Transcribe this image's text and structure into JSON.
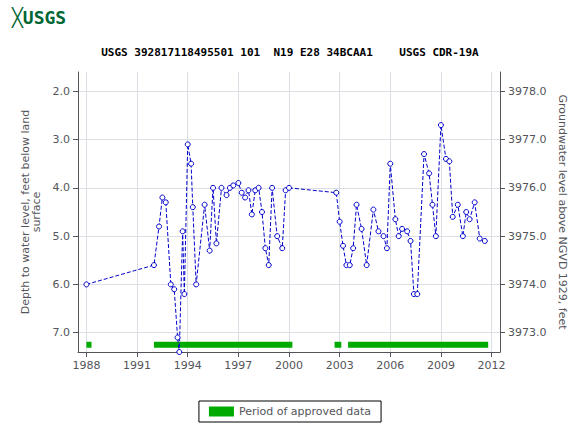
{
  "chart_data": {
    "type": "line",
    "title": "USGS 392817118495501 101  N19 E28 34BCAA1    USGS CDR-19A",
    "annotations": [
      {
        "text": "╳USGS",
        "color": "#006633"
      }
    ],
    "ylabel": "Depth to water level, feet below land\nsurface",
    "y2label": "Groundwater level above NGVD 1929, feet",
    "xlim": [
      1987.5,
      2012.5
    ],
    "xticks": [
      1988,
      1991,
      1994,
      1997,
      2000,
      2003,
      2006,
      2009,
      2012
    ],
    "ylim": [
      7.4,
      1.6
    ],
    "yticks": [
      {
        "value": 2.0,
        "label": "2.0"
      },
      {
        "value": 3.0,
        "label": "3.0"
      },
      {
        "value": 4.0,
        "label": "4.0"
      },
      {
        "value": 5.0,
        "label": "5.0"
      },
      {
        "value": 6.0,
        "label": "6.0"
      },
      {
        "value": 7.0,
        "label": "7.0"
      }
    ],
    "y2lim": [
      3972.6,
      3978.4
    ],
    "y2ticks": [
      {
        "value": 3973.0,
        "label": "3973.0"
      },
      {
        "value": 3974.0,
        "label": "3974.0"
      },
      {
        "value": 3975.0,
        "label": "3975.0"
      },
      {
        "value": 3976.0,
        "label": "3976.0"
      },
      {
        "value": 3977.0,
        "label": "3977.0"
      },
      {
        "value": 3978.0,
        "label": "3978.0"
      }
    ],
    "grid": true,
    "legend": "bottom",
    "series": [
      {
        "type": "line",
        "color": "#0000CC",
        "line_style": "dashed",
        "marker": "circle",
        "x": [
          1988.0,
          1992.0,
          1992.3,
          1992.5,
          1992.7,
          1993.0,
          1993.2,
          1993.4,
          1993.5,
          1993.7,
          1993.8,
          1994.0,
          1994.2,
          1994.3,
          1994.5,
          1995.0,
          1995.3,
          1995.5,
          1995.7,
          1996.0,
          1996.3,
          1996.5,
          1996.7,
          1997.0,
          1997.2,
          1997.4,
          1997.6,
          1997.8,
          1998.0,
          1998.2,
          1998.4,
          1998.6,
          1998.8,
          1999.0,
          1999.3,
          1999.6,
          1999.8,
          2000.0,
          2002.8,
          2003.0,
          2003.2,
          2003.4,
          2003.6,
          2003.8,
          2004.0,
          2004.3,
          2004.6,
          2005.0,
          2005.3,
          2005.6,
          2005.8,
          2006.0,
          2006.3,
          2006.5,
          2006.7,
          2007.0,
          2007.2,
          2007.4,
          2007.6,
          2008.0,
          2008.3,
          2008.5,
          2008.7,
          2009.0,
          2009.3,
          2009.5,
          2009.7,
          2010.0,
          2010.3,
          2010.5,
          2010.7,
          2011.0,
          2011.3,
          2011.6
        ],
        "values": [
          6.0,
          5.6,
          4.8,
          4.2,
          4.3,
          6.0,
          6.1,
          7.1,
          7.4,
          4.9,
          6.2,
          3.1,
          3.5,
          4.4,
          6.0,
          4.35,
          5.3,
          4.0,
          5.15,
          4.0,
          4.15,
          4.0,
          3.95,
          3.9,
          4.1,
          4.2,
          4.05,
          4.55,
          4.05,
          4.0,
          4.5,
          5.25,
          5.6,
          4.0,
          5.0,
          5.25,
          4.05,
          4.0,
          4.1,
          4.7,
          5.2,
          5.6,
          5.6,
          5.25,
          4.35,
          4.85,
          5.6,
          4.45,
          4.9,
          5.0,
          5.25,
          3.5,
          4.65,
          5.0,
          4.85,
          4.9,
          5.1,
          6.2,
          6.2,
          3.3,
          3.7,
          4.35,
          5.0,
          2.7,
          3.4,
          3.45,
          4.6,
          4.35,
          5.0,
          4.5,
          4.65,
          4.3,
          5.05,
          5.1
        ]
      },
      {
        "type": "bar",
        "orientation": "horizontal",
        "name": "Period of approved data",
        "color": "#00AA00",
        "y": 7.25,
        "periods": [
          [
            1988.0,
            1988.3
          ],
          [
            1992.0,
            2000.2
          ],
          [
            2002.7,
            2003.1
          ],
          [
            2003.5,
            2011.8
          ]
        ]
      }
    ]
  }
}
